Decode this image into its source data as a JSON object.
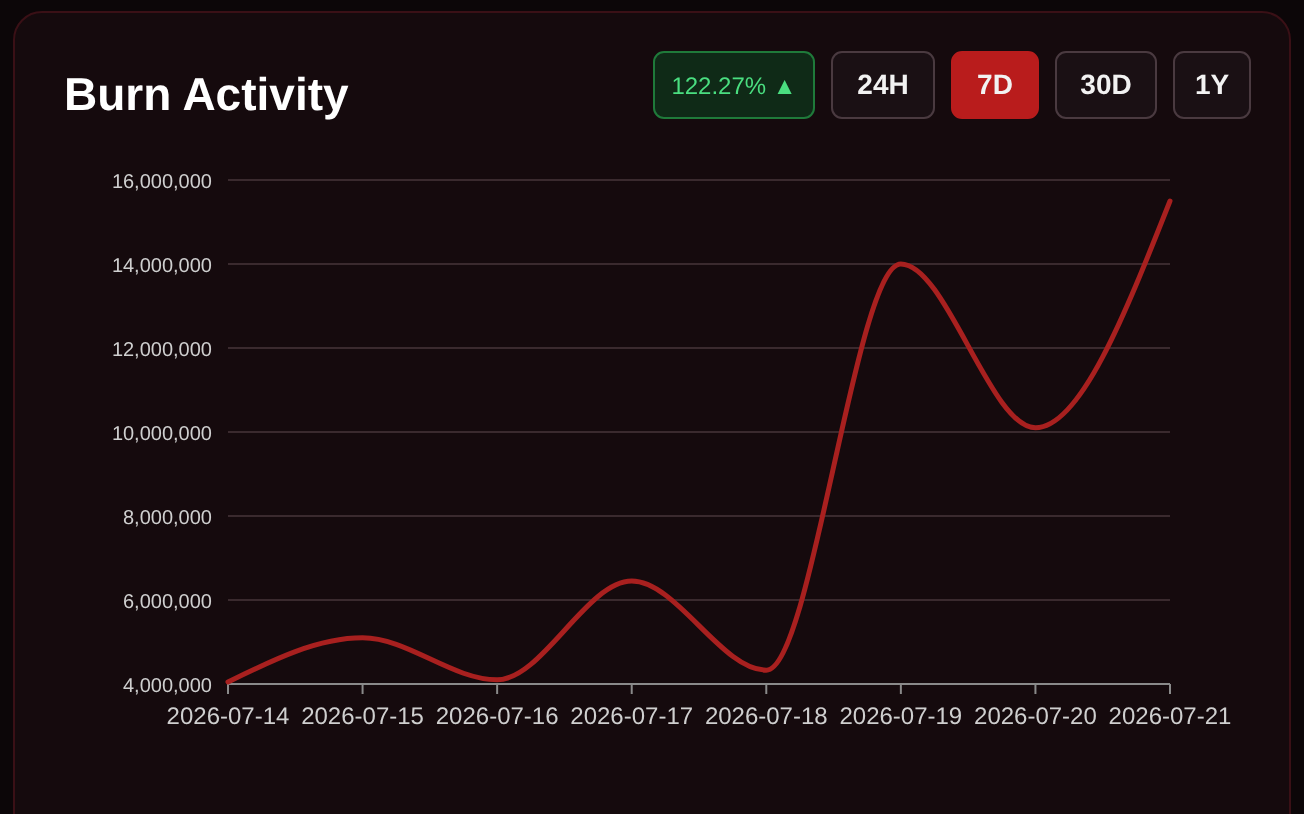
{
  "chart_data": {
    "type": "line",
    "title": "Burn Activity",
    "annotations": [
      "122.27% ▲",
      "24H",
      "7D",
      "30D",
      "1Y"
    ],
    "categories": [
      "2026-07-14",
      "2026-07-15",
      "2026-07-16",
      "2026-07-17",
      "2026-07-18",
      "2026-07-19",
      "2026-07-20",
      "2026-07-21"
    ],
    "series": [
      {
        "color": "#a8201f",
        "values": [
          4050000,
          5100000,
          4100000,
          6450000,
          4330000,
          14000000,
          10100000,
          15500000
        ]
      }
    ],
    "ylim": [
      4000000,
      16000000
    ],
    "yticks": [
      {
        "value": 4000000,
        "label": "4,000,000"
      },
      {
        "value": 6000000,
        "label": "6,000,000"
      },
      {
        "value": 8000000,
        "label": "8,000,000"
      },
      {
        "value": 10000000,
        "label": "10,000,000"
      },
      {
        "value": 12000000,
        "label": "12,000,000"
      },
      {
        "value": 14000000,
        "label": "14,000,000"
      },
      {
        "value": 16000000,
        "label": "16,000,000"
      }
    ],
    "grid": "y",
    "marker": "none",
    "line_style": "solid"
  }
}
